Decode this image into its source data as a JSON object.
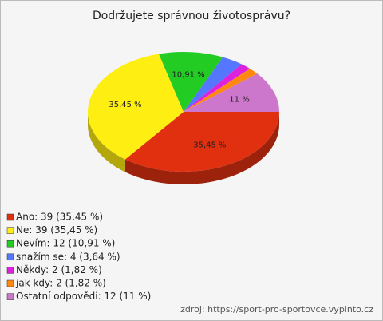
{
  "chart_data": {
    "type": "pie",
    "title": "Dodržujete správnou životosprávu?",
    "categories": [
      "Ano: 39 (35,45 %)",
      "Ne: 39 (35,45 %)",
      "Nevím: 12 (10,91 %)",
      "snažím se: 4 (3,64 %)",
      "Někdy: 2 (1,82 %)",
      "jak kdy: 2 (1,82 %)",
      "Ostatní odpovědi: 12 (11 %)"
    ],
    "values": [
      35.45,
      35.45,
      10.91,
      3.64,
      1.82,
      1.82,
      11
    ],
    "value_labels": [
      "35,45 %",
      "35,45 %",
      "10,91 %",
      null,
      null,
      null,
      "11 %"
    ],
    "colors": [
      "#e03010",
      "#ffee11",
      "#22cc22",
      "#5577ff",
      "#dd22dd",
      "#ff8811",
      "#cc77cc"
    ],
    "source": "zdroj: https://sport-pro-sportovce.vyplnto.cz"
  }
}
